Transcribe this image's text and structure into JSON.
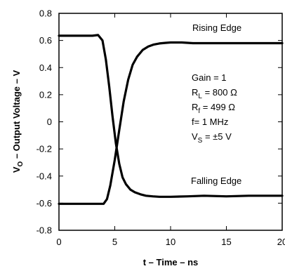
{
  "chart_data": {
    "type": "line",
    "xlabel": "t – Time – ns",
    "ylabel": {
      "main": "V",
      "sub": "O",
      "rest": " – Output Voltage – V"
    },
    "xlim": [
      0,
      20
    ],
    "ylim": [
      -0.8,
      0.8
    ],
    "x_ticks": [
      "0",
      "5",
      "10",
      "15",
      "20"
    ],
    "y_ticks": [
      "0.8",
      "0.6",
      "0.4",
      "0.2",
      "0",
      "-0.2",
      "-0.4",
      "-0.6",
      "-0.8"
    ],
    "grid": false,
    "series": [
      {
        "name": "Rising Edge",
        "x": [
          0,
          1,
          2,
          3,
          4,
          4.3,
          4.6,
          5.0,
          5.4,
          5.8,
          6.2,
          6.6,
          7.0,
          7.5,
          8.0,
          8.5,
          9.0,
          9.5,
          10.0,
          11,
          12,
          14,
          16,
          18,
          20
        ],
        "y": [
          -0.605,
          -0.605,
          -0.605,
          -0.605,
          -0.605,
          -0.57,
          -0.47,
          -0.28,
          -0.06,
          0.15,
          0.31,
          0.42,
          0.48,
          0.53,
          0.555,
          0.57,
          0.578,
          0.582,
          0.585,
          0.585,
          0.58,
          0.58,
          0.58,
          0.58,
          0.58
        ]
      },
      {
        "name": "Falling Edge",
        "x": [
          0,
          1,
          2,
          3,
          3.5,
          3.9,
          4.2,
          4.5,
          4.8,
          5.1,
          5.4,
          5.7,
          6.0,
          6.4,
          6.8,
          7.3,
          7.8,
          8.4,
          9.0,
          10.0,
          11.5,
          13,
          15,
          17,
          20
        ],
        "y": [
          0.635,
          0.635,
          0.635,
          0.635,
          0.64,
          0.6,
          0.46,
          0.26,
          0.04,
          -0.16,
          -0.31,
          -0.41,
          -0.46,
          -0.5,
          -0.52,
          -0.535,
          -0.545,
          -0.55,
          -0.553,
          -0.553,
          -0.55,
          -0.545,
          -0.55,
          -0.545,
          -0.545
        ]
      }
    ],
    "annotations": {
      "rising_label": "Rising Edge",
      "falling_label": "Falling Edge",
      "params": [
        {
          "main": "Gain = 1",
          "sub": "",
          "rest": ""
        },
        {
          "main": "R",
          "sub": "L",
          "rest": " = 800 Ω"
        },
        {
          "main": "R",
          "sub": "f",
          "rest": " = 499 Ω"
        },
        {
          "main": "f= 1 MHz",
          "sub": "",
          "rest": ""
        },
        {
          "main": "V",
          "sub": "S",
          "rest": " = ±5 V"
        }
      ]
    }
  }
}
